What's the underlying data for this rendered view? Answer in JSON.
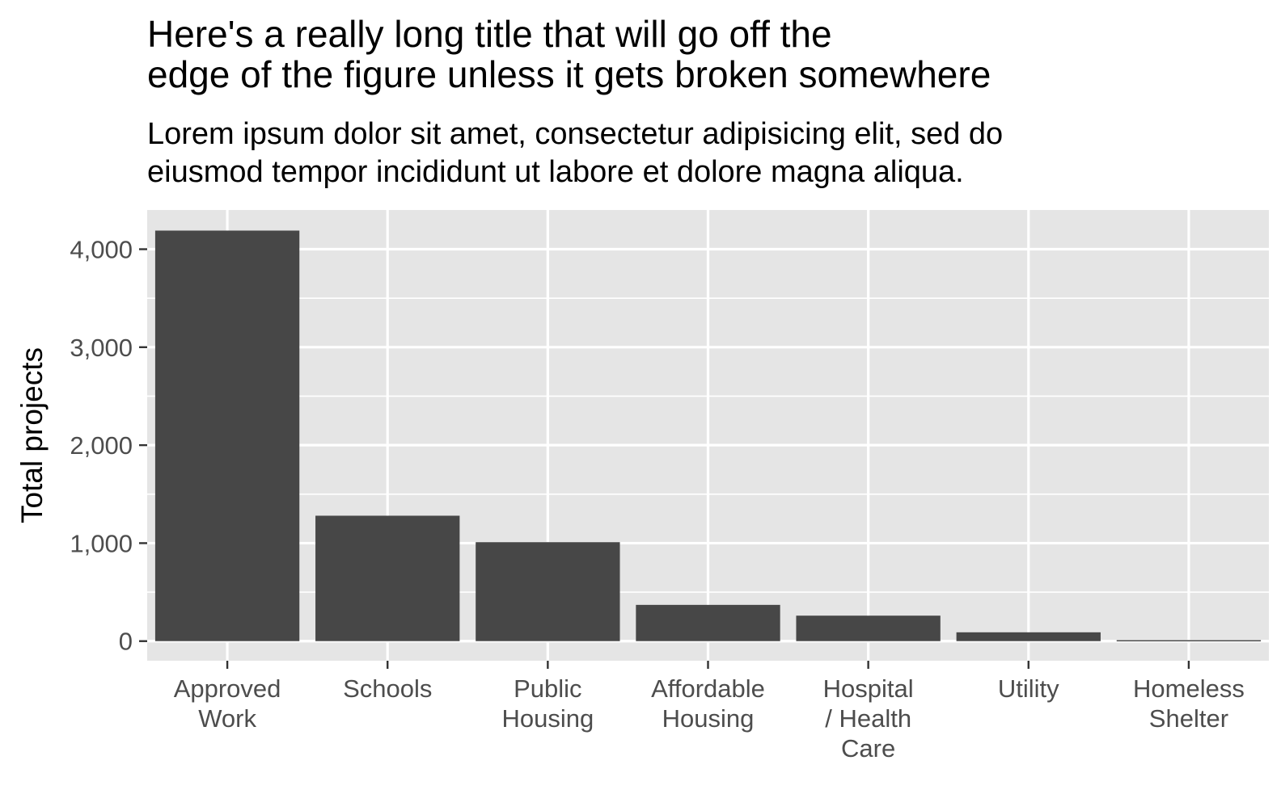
{
  "chart_data": {
    "type": "bar",
    "title_lines": [
      "Here's a really long title that will go off the",
      "edge of the figure unless it gets broken somewhere"
    ],
    "subtitle_lines": [
      "Lorem ipsum dolor sit amet, consectetur adipisicing elit, sed do",
      "eiusmod tempor incididunt ut labore et dolore magna aliqua."
    ],
    "xlabel": "",
    "ylabel": "Total projects",
    "categories": [
      [
        "Approved",
        "Work"
      ],
      [
        "Schools"
      ],
      [
        "Public",
        "Housing"
      ],
      [
        "Affordable",
        "Housing"
      ],
      [
        "Hospital",
        "/ Health",
        "Care"
      ],
      [
        "Utility"
      ],
      [
        "Homeless",
        "Shelter"
      ]
    ],
    "values": [
      4190,
      1280,
      1010,
      370,
      260,
      90,
      10
    ],
    "ylim": [
      -200,
      4400
    ],
    "yticks": [
      0,
      1000,
      2000,
      3000,
      4000
    ],
    "ytick_labels": [
      "0",
      "1,000",
      "2,000",
      "3,000",
      "4,000"
    ],
    "grid": true,
    "bar_color": "#474747",
    "panel_color": "#e5e5e5",
    "grid_color": "#ffffff"
  }
}
